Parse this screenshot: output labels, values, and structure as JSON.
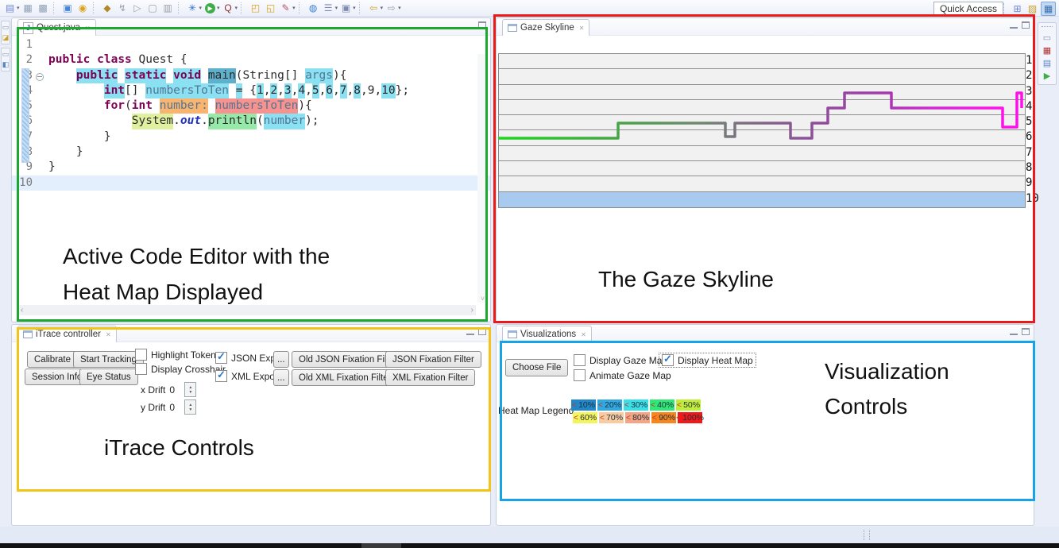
{
  "window": {
    "quick_access": "Quick Access"
  },
  "toolbar_icons": [
    {
      "name": "new-wizard-icon",
      "glyph": "▤",
      "color": "#6f86cf",
      "caret": true
    },
    {
      "name": "save-icon",
      "glyph": "▦",
      "color": "#8fa0b4"
    },
    {
      "name": "save-all-icon",
      "glyph": "▩",
      "color": "#8fa0b4"
    },
    {
      "name": "sep",
      "sep": true
    },
    {
      "name": "console-icon",
      "glyph": "▣",
      "color": "#4a86d8"
    },
    {
      "name": "task-icon",
      "glyph": "◉",
      "color": "#d9a41c"
    },
    {
      "name": "sep",
      "sep": true
    },
    {
      "name": "key-icon",
      "glyph": "◆",
      "color": "#b08a2a"
    },
    {
      "name": "lightning-icon",
      "glyph": "↯",
      "color": "#9aa0a8"
    },
    {
      "name": "skip-icon",
      "glyph": "▷",
      "color": "#9aa0a8"
    },
    {
      "name": "profile-icon",
      "glyph": "▢",
      "color": "#9aa0a8"
    },
    {
      "name": "tool-icon",
      "glyph": "▥",
      "color": "#9aa0a8"
    },
    {
      "name": "sep",
      "sep": true
    },
    {
      "name": "debug-icon",
      "glyph": "✳",
      "color": "#2f6fc4",
      "caret": true
    },
    {
      "name": "run-icon",
      "glyph": "▶",
      "color": "#ffffff",
      "bg": "#3fae49",
      "round": true,
      "caret": true
    },
    {
      "name": "coverage-icon",
      "glyph": "Q",
      "color": "#8c2f2f",
      "caret": true
    },
    {
      "name": "sep",
      "sep": true
    },
    {
      "name": "open-folder-icon",
      "glyph": "◰",
      "color": "#d9a41c"
    },
    {
      "name": "closed-folder-icon",
      "glyph": "◱",
      "color": "#d9a41c"
    },
    {
      "name": "search-pencil-icon",
      "glyph": "✎",
      "color": "#b05468",
      "caret": true
    },
    {
      "name": "sep",
      "sep": true
    },
    {
      "name": "browser-icon",
      "glyph": "◍",
      "color": "#3a7fd5"
    },
    {
      "name": "checklist-icon",
      "glyph": "☰",
      "color": "#7d8bb0",
      "caret": true
    },
    {
      "name": "new-window-icon",
      "glyph": "▣",
      "color": "#7d8bb0",
      "caret": true
    },
    {
      "name": "sep",
      "sep": true
    },
    {
      "name": "back-arrow-icon",
      "glyph": "⇦",
      "color": "#c9a227",
      "caret": true
    },
    {
      "name": "forward-arrow-icon",
      "glyph": "⇨",
      "color": "#9aa0a8",
      "caret": true
    }
  ],
  "perspective_icons": [
    {
      "name": "open-perspective-icon",
      "glyph": "⊞",
      "color": "#6f86cf",
      "active": false
    },
    {
      "name": "resource-perspective-icon",
      "glyph": "▨",
      "color": "#c9a227",
      "active": false
    },
    {
      "name": "java-perspective-icon",
      "glyph": "▦",
      "color": "#3a6fb0",
      "active": true
    }
  ],
  "left_rail_icons": [
    {
      "name": "restore-view-icon",
      "glyph": "▭",
      "color": "#8890a4"
    },
    {
      "name": "package-explorer-icon",
      "glyph": "◪",
      "color": "#c9a227"
    },
    {
      "name": "restore-view-icon",
      "glyph": "▭",
      "color": "#8890a4"
    },
    {
      "name": "outline-view-icon",
      "glyph": "◧",
      "color": "#5b84c4"
    }
  ],
  "right_rail_icons": [
    {
      "name": "restore-view-icon",
      "glyph": "▭",
      "color": "#8890a4"
    },
    {
      "name": "junit-view-icon",
      "glyph": "▦",
      "color": "#b03030"
    },
    {
      "name": "task-list-icon",
      "glyph": "▤",
      "color": "#5b84c4"
    },
    {
      "name": "sync-view-icon",
      "glyph": "▶",
      "color": "#3fae49"
    }
  ],
  "editor": {
    "tab_title": "Quest.java",
    "annotation_line1": "Active Code Editor with the",
    "annotation_line2": "Heat Map Displayed",
    "lines": [
      {
        "num": "1",
        "tokens": []
      },
      {
        "num": "2",
        "tokens": [
          {
            "t": "public",
            "s": "kw"
          },
          {
            "t": " ",
            "s": "pl"
          },
          {
            "t": "class",
            "s": "kw"
          },
          {
            "t": " Quest {",
            "s": "pl"
          }
        ]
      },
      {
        "num": "3",
        "fold": true,
        "tokens": [
          {
            "t": "    ",
            "s": "pl"
          },
          {
            "t": "public",
            "s": "kw",
            "h": "cyan"
          },
          {
            "t": " ",
            "s": "pl"
          },
          {
            "t": "static",
            "s": "kw",
            "h": "cyan"
          },
          {
            "t": " ",
            "s": "pl"
          },
          {
            "t": "void",
            "s": "kw",
            "h": "cyan"
          },
          {
            "t": " ",
            "s": "pl"
          },
          {
            "t": "main",
            "s": "pl",
            "h": "teal"
          },
          {
            "t": "(String[] ",
            "s": "pl"
          },
          {
            "t": "args",
            "s": "var",
            "h": "cyan"
          },
          {
            "t": "){",
            "s": "pl"
          }
        ]
      },
      {
        "num": "4",
        "tokens": [
          {
            "t": "        ",
            "s": "pl"
          },
          {
            "t": "int",
            "s": "kw",
            "h": "cyan"
          },
          {
            "t": "[] ",
            "s": "pl"
          },
          {
            "t": "numbersToTen",
            "s": "var",
            "h": "cyan"
          },
          {
            "t": " ",
            "s": "pl"
          },
          {
            "t": "=",
            "s": "pl",
            "h": "cyan"
          },
          {
            "t": " {",
            "s": "pl"
          },
          {
            "t": "1",
            "s": "pl",
            "h": "cyan"
          },
          {
            "t": ",",
            "s": "pl"
          },
          {
            "t": "2",
            "s": "pl",
            "h": "cyan"
          },
          {
            "t": ",",
            "s": "pl"
          },
          {
            "t": "3",
            "s": "pl",
            "h": "cyan"
          },
          {
            "t": ",",
            "s": "pl"
          },
          {
            "t": "4",
            "s": "pl",
            "h": "cyan"
          },
          {
            "t": ",",
            "s": "pl"
          },
          {
            "t": "5",
            "s": "pl",
            "h": "cyan"
          },
          {
            "t": ",",
            "s": "pl"
          },
          {
            "t": "6",
            "s": "pl",
            "h": "cyan"
          },
          {
            "t": ",",
            "s": "pl"
          },
          {
            "t": "7",
            "s": "pl",
            "h": "cyan"
          },
          {
            "t": ",",
            "s": "pl"
          },
          {
            "t": "8",
            "s": "pl",
            "h": "cyan"
          },
          {
            "t": ",",
            "s": "pl"
          },
          {
            "t": "9",
            "s": "pl"
          },
          {
            "t": ",",
            "s": "pl"
          },
          {
            "t": "10",
            "s": "pl",
            "h": "cyan"
          },
          {
            "t": "};",
            "s": "pl"
          }
        ]
      },
      {
        "num": "5",
        "tokens": [
          {
            "t": "        ",
            "s": "pl"
          },
          {
            "t": "for",
            "s": "kw"
          },
          {
            "t": "(",
            "s": "pl"
          },
          {
            "t": "int",
            "s": "kw"
          },
          {
            "t": " ",
            "s": "pl"
          },
          {
            "t": "number:",
            "s": "var",
            "h": "orange"
          },
          {
            "t": " ",
            "s": "pl"
          },
          {
            "t": "numbersToTen",
            "s": "var",
            "h": "salmon"
          },
          {
            "t": "){",
            "s": "pl"
          }
        ]
      },
      {
        "num": "6",
        "tokens": [
          {
            "t": "            ",
            "s": "pl"
          },
          {
            "t": "System",
            "s": "pl",
            "h": "yellow"
          },
          {
            "t": ".",
            "s": "pl"
          },
          {
            "t": "out",
            "s": "fld"
          },
          {
            "t": ".",
            "s": "pl"
          },
          {
            "t": "println",
            "s": "pl",
            "h": "green"
          },
          {
            "t": "(",
            "s": "pl"
          },
          {
            "t": "number",
            "s": "var",
            "h": "cyan"
          },
          {
            "t": ");",
            "s": "pl"
          }
        ]
      },
      {
        "num": "7",
        "tokens": [
          {
            "t": "        }",
            "s": "pl"
          }
        ]
      },
      {
        "num": "8",
        "tokens": [
          {
            "t": "    }",
            "s": "pl"
          }
        ]
      },
      {
        "num": "9",
        "tokens": [
          {
            "t": "}",
            "s": "pl"
          }
        ]
      },
      {
        "num": "10",
        "current": true,
        "tokens": []
      }
    ]
  },
  "skyline": {
    "tab_title": "Gaze Skyline",
    "annotation": "The Gaze Skyline",
    "row_labels": [
      "1",
      "2",
      "3",
      "4",
      "5",
      "6",
      "7",
      "8",
      "9",
      "10"
    ],
    "selected_row": "10",
    "selected_row_color": "#a9caef",
    "path_points": [
      [
        0,
        107
      ],
      [
        151,
        107
      ],
      [
        151,
        88
      ],
      [
        286,
        88
      ],
      [
        286,
        105
      ],
      [
        298,
        105
      ],
      [
        298,
        88
      ],
      [
        368,
        88
      ],
      [
        368,
        107
      ],
      [
        395,
        107
      ],
      [
        395,
        88
      ],
      [
        415,
        88
      ],
      [
        415,
        69
      ],
      [
        436,
        69
      ],
      [
        436,
        50
      ],
      [
        495,
        50
      ],
      [
        495,
        69
      ],
      [
        635,
        69
      ],
      [
        635,
        93
      ],
      [
        653,
        93
      ],
      [
        653,
        50
      ],
      [
        659,
        50
      ],
      [
        659,
        69
      ]
    ],
    "gradient_stops": [
      {
        "off": "0%",
        "color": "#1fd61f"
      },
      {
        "off": "22%",
        "color": "#46a546"
      },
      {
        "off": "38%",
        "color": "#6e8a70"
      },
      {
        "off": "50%",
        "color": "#826687"
      },
      {
        "off": "62%",
        "color": "#8f4c9c"
      },
      {
        "off": "74%",
        "color": "#a936b2"
      },
      {
        "off": "84%",
        "color": "#d428d4"
      },
      {
        "off": "94%",
        "color": "#fc12e8"
      },
      {
        "off": "100%",
        "color": "#fc12e8"
      }
    ]
  },
  "itrace": {
    "tab_title": "iTrace controller",
    "annotation": "iTrace Controls",
    "buttons": {
      "calibrate": "Calibrate",
      "start_tracking": "Start Tracking",
      "session_info": "Session Info",
      "eye_status": "Eye Status",
      "old_json_filter": "Old JSON Fixation Filter",
      "json_filter": "JSON Fixation Filter",
      "old_xml_filter": "Old XML Fixation Filter",
      "xml_filter": "XML Fixation Filter",
      "ellipsis": "..."
    },
    "checkboxes": {
      "highlight_tokens": {
        "label": "Highlight Tokens",
        "checked": false
      },
      "display_crosshair": {
        "label": "Display Crosshair",
        "checked": false
      },
      "json_export": {
        "label": "JSON Export",
        "checked": true
      },
      "xml_export": {
        "label": "XML Export",
        "checked": true
      }
    },
    "drift": {
      "x_label": "x Drift",
      "x_value": "0",
      "y_label": "y Drift",
      "y_value": "0"
    }
  },
  "visualizations": {
    "tab_title": "Visualizations",
    "annotation_line1": "Visualization",
    "annotation_line2": "Controls",
    "choose_file": "Choose File",
    "checkboxes": {
      "display_gaze_map": {
        "label": "Display Gaze Map",
        "checked": false
      },
      "display_heat_map": {
        "label": "Display Heat Map",
        "checked": true
      },
      "animate_gaze_map": {
        "label": "Animate Gaze Map",
        "checked": false
      }
    },
    "legend_label": "Heat Map Legend",
    "legend_rows": [
      [
        {
          "label": "< 10%",
          "color": "#2088c8"
        },
        {
          "label": "< 20%",
          "color": "#30a8e0"
        },
        {
          "label": "< 30%",
          "color": "#38e0e8"
        },
        {
          "label": "< 40%",
          "color": "#30e878"
        },
        {
          "label": "< 50%",
          "color": "#c2ec3a"
        }
      ],
      [
        {
          "label": "< 60%",
          "color": "#f4f45c"
        },
        {
          "label": "< 70%",
          "color": "#f8cca0"
        },
        {
          "label": "< 80%",
          "color": "#f4a584"
        },
        {
          "label": "< 90%",
          "color": "#f8861c"
        },
        {
          "label": "< 100%",
          "color": "#f01818"
        }
      ]
    ]
  },
  "annotation_colors": {
    "editor_box": "#1da831",
    "skyline_box": "#e81a1a",
    "itrace_box": "#f2c318",
    "visualizations_box": "#16a3e8"
  },
  "heat_colors": {
    "cyan": "#8be0f2",
    "teal": "#5fb0cc",
    "orange": "#f9b56f",
    "salmon": "#f7928e",
    "yellow": "#dff0a0",
    "green": "#97e9a9"
  }
}
